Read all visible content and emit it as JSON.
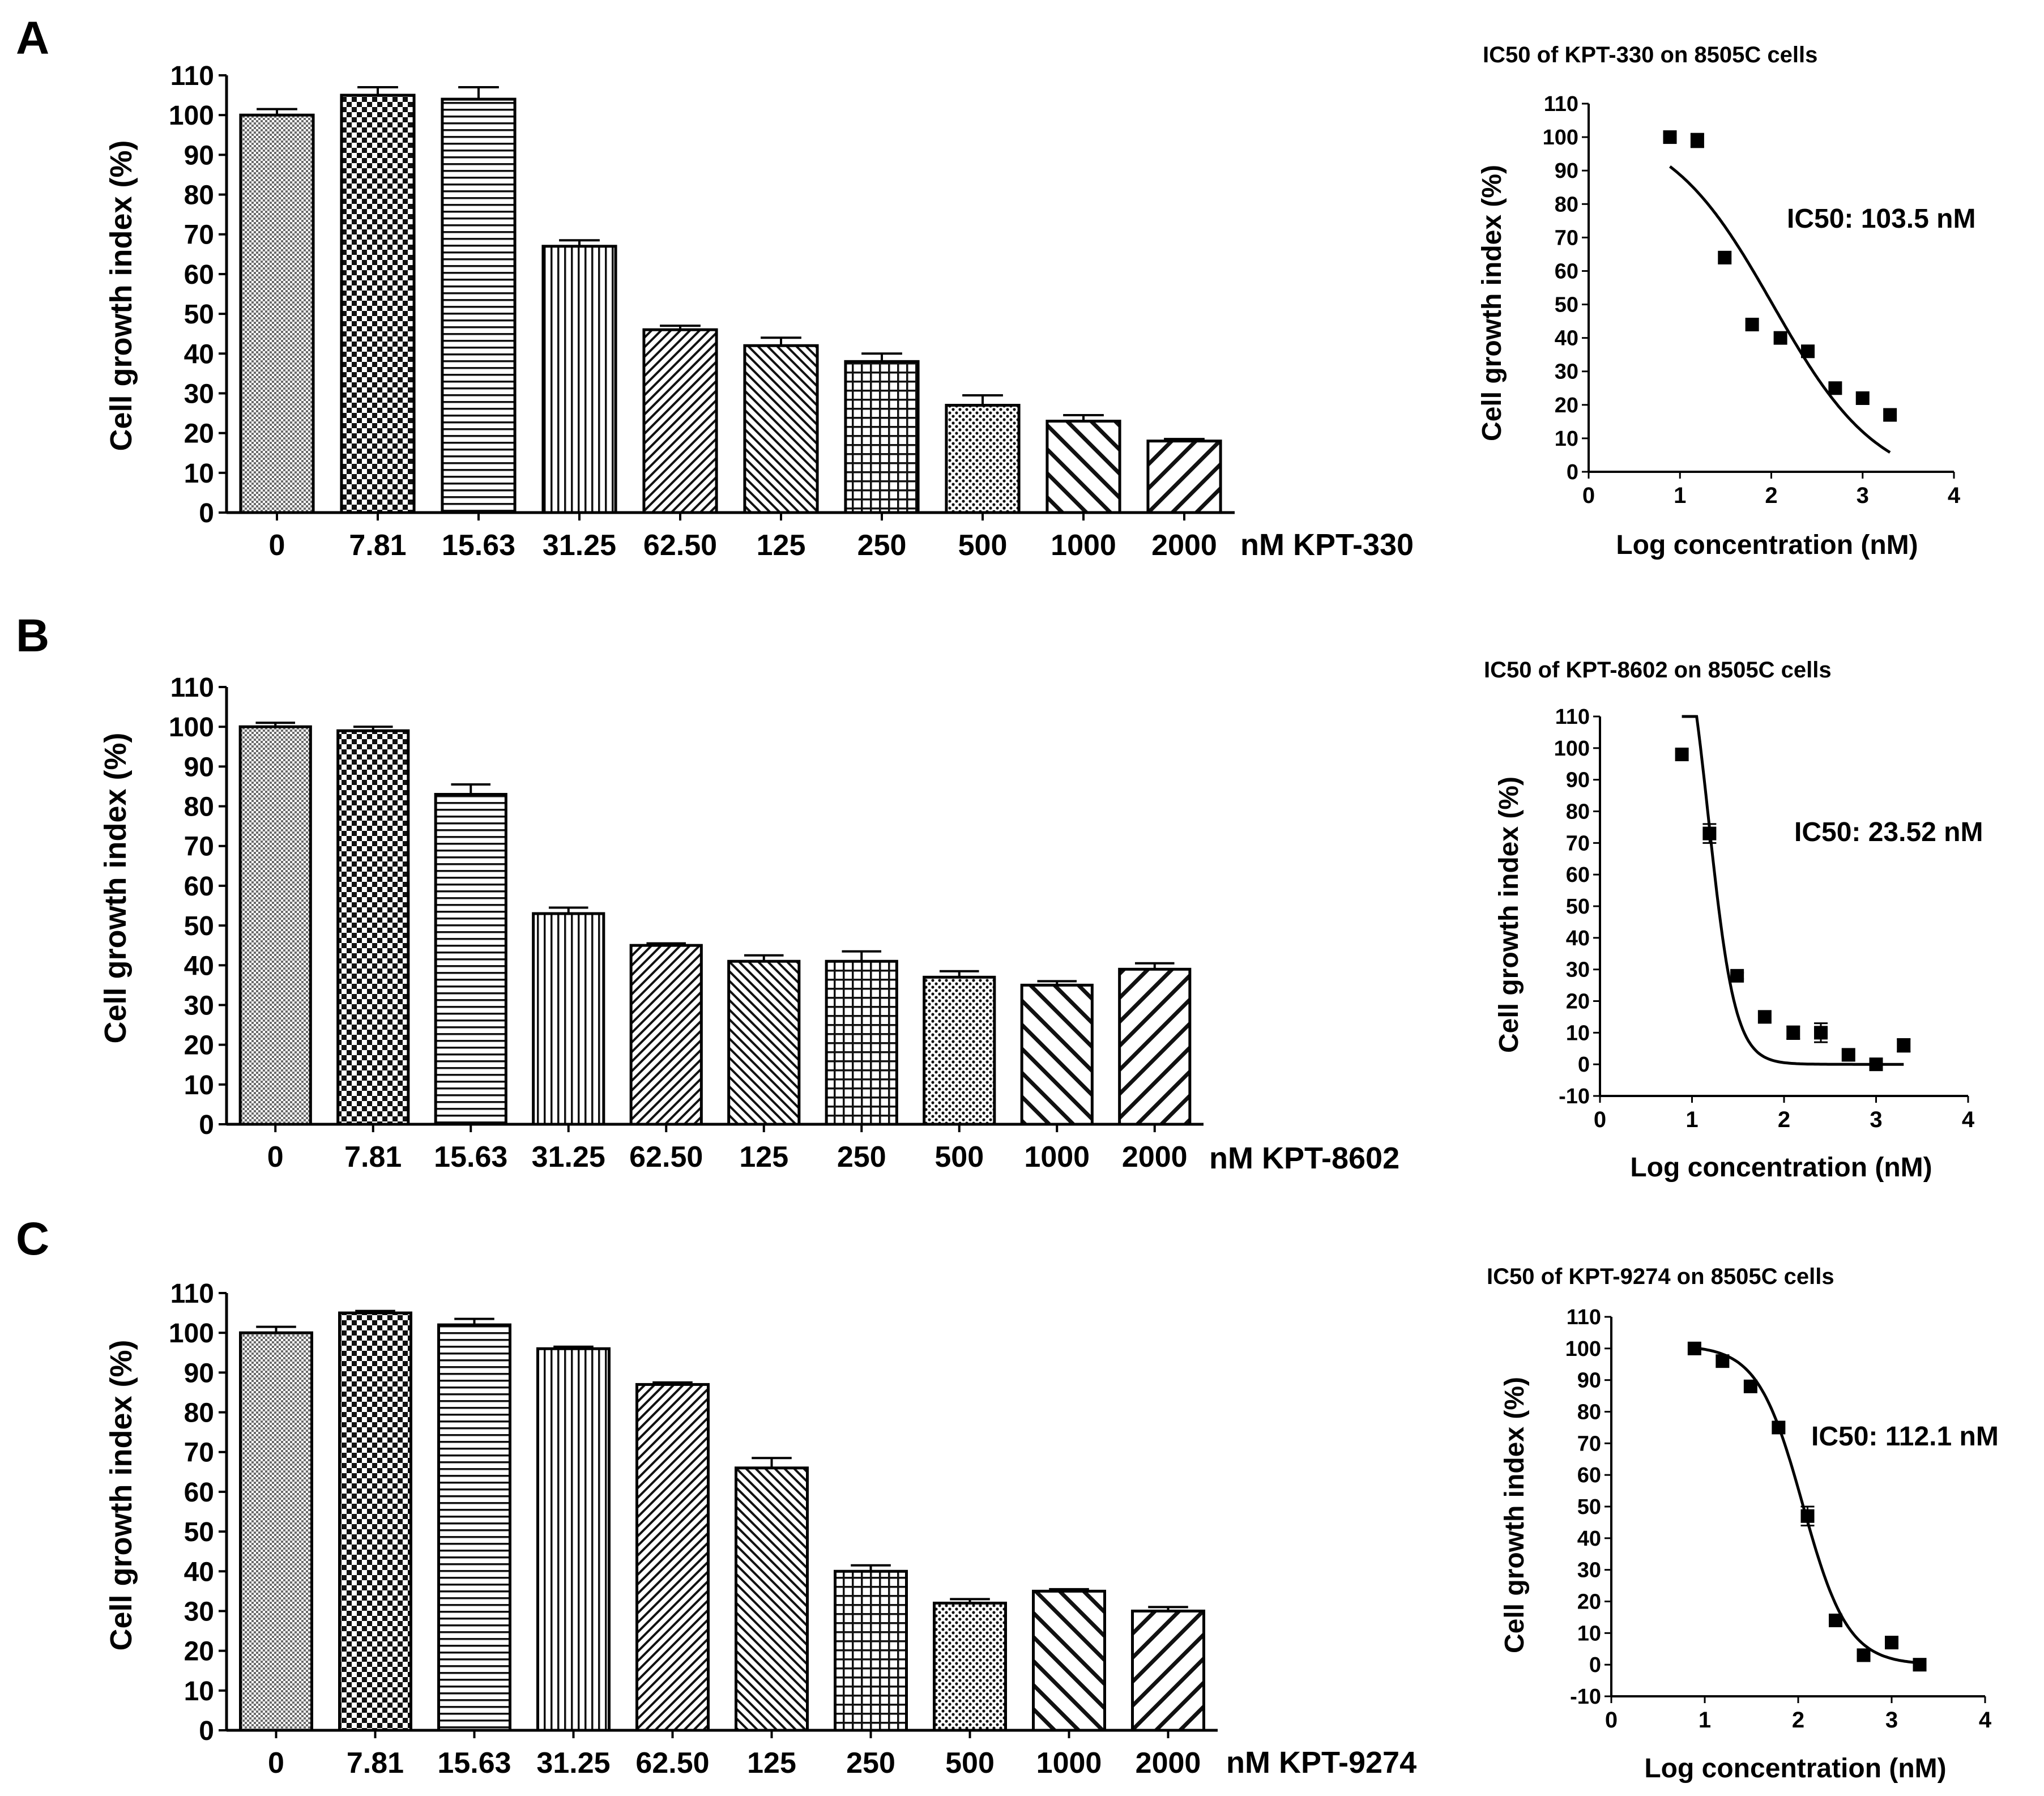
{
  "figure": {
    "panels": [
      {
        "label": "A",
        "bar": {
          "ylabel": "Cell growth index (%)",
          "xlabel": "nM KPT-330"
        },
        "ic50": {
          "title": "IC50 of KPT-330 on 8505C cells",
          "ylabel": "Cell growth index (%)",
          "xlabel": "Log concentration (nM)",
          "annotation": "IC50:  103.5 nM"
        }
      },
      {
        "label": "B",
        "bar": {
          "ylabel": "Cell growth index (%)",
          "xlabel": "nM KPT-8602"
        },
        "ic50": {
          "title": "IC50 of KPT-8602 on 8505C cells",
          "ylabel": "Cell growth index (%)",
          "xlabel": "Log concentration (nM)",
          "annotation": "IC50:  23.52 nM"
        }
      },
      {
        "label": "C",
        "bar": {
          "ylabel": "Cell growth index (%)",
          "xlabel": "nM KPT-9274"
        },
        "ic50": {
          "title": "IC50 of KPT-9274 on 8505C cells",
          "ylabel": "Cell growth index (%)",
          "xlabel": "Log concentration (nM)",
          "annotation": "IC50:  112.1 nM"
        }
      }
    ]
  },
  "chart_data": [
    {
      "type": "bar",
      "title": "",
      "xlabel": "nM KPT-330",
      "ylabel": "Cell growth index (%)",
      "categories": [
        "0",
        "7.81",
        "15.63",
        "31.25",
        "62.50",
        "125",
        "250",
        "500",
        "1000",
        "2000"
      ],
      "values": [
        100,
        105,
        104,
        67,
        46,
        42,
        38,
        27,
        23,
        18
      ],
      "errors": [
        1.5,
        2,
        3,
        1.5,
        1,
        2,
        2,
        2.5,
        1.5,
        0.5
      ],
      "ylim": [
        0,
        110
      ],
      "yticks": [
        0,
        10,
        20,
        30,
        40,
        50,
        60,
        70,
        80,
        90,
        100,
        110
      ],
      "grid": false
    },
    {
      "type": "scatter",
      "title": "IC50 of KPT-330 on 8505C cells",
      "xlabel": "Log concentration (nM)",
      "ylabel": "Cell growth index (%)",
      "x": [
        0.89,
        1.19,
        1.49,
        1.79,
        2.1,
        2.4,
        2.7,
        3.0,
        3.3
      ],
      "y": [
        100,
        99,
        64,
        44,
        40,
        36,
        25,
        22,
        17
      ],
      "errors": [
        0,
        2,
        0,
        0,
        0,
        0,
        0,
        0,
        0
      ],
      "fit": {
        "model": "four-parameter logistic",
        "top": 105,
        "bottom": -5,
        "logIC50": 2.015,
        "hill": -0.75
      },
      "annotation": "IC50:  103.5 nM",
      "xlim": [
        0,
        4
      ],
      "ylim": [
        0,
        110
      ],
      "xticks": [
        0,
        1,
        2,
        3,
        4
      ],
      "yticks": [
        0,
        10,
        20,
        30,
        40,
        50,
        60,
        70,
        80,
        90,
        100,
        110
      ],
      "grid": false
    },
    {
      "type": "bar",
      "title": "",
      "xlabel": "nM KPT-8602",
      "ylabel": "Cell growth index (%)",
      "categories": [
        "0",
        "7.81",
        "15.63",
        "31.25",
        "62.50",
        "125",
        "250",
        "500",
        "1000",
        "2000"
      ],
      "values": [
        100,
        99,
        83,
        53,
        45,
        41,
        41,
        37,
        35,
        39
      ],
      "errors": [
        1,
        1,
        2.5,
        1.5,
        0.5,
        1.5,
        2.5,
        1.5,
        1,
        1.5
      ],
      "ylim": [
        0,
        110
      ],
      "yticks": [
        0,
        10,
        20,
        30,
        40,
        50,
        60,
        70,
        80,
        90,
        100,
        110
      ],
      "grid": false
    },
    {
      "type": "scatter",
      "title": "IC50 of KPT-8602 on 8505C cells",
      "xlabel": "Log concentration (nM)",
      "ylabel": "Cell growth index (%)",
      "x": [
        0.89,
        1.19,
        1.49,
        1.79,
        2.1,
        2.4,
        2.7,
        3.0,
        3.3
      ],
      "y": [
        98,
        73,
        28,
        15,
        10,
        10,
        3,
        0,
        6
      ],
      "errors": [
        0,
        3,
        1,
        0,
        2,
        3,
        0,
        0,
        2
      ],
      "fit": {
        "model": "four-parameter logistic",
        "top": 155,
        "bottom": 0,
        "logIC50": 1.18,
        "hill": -3
      },
      "annotation": "IC50:  23.52 nM",
      "xlim": [
        0,
        4
      ],
      "ylim": [
        -10,
        110
      ],
      "xticks": [
        0,
        1,
        2,
        3,
        4
      ],
      "yticks": [
        -10,
        0,
        10,
        20,
        30,
        40,
        50,
        60,
        70,
        80,
        90,
        100,
        110
      ],
      "grid": false
    },
    {
      "type": "bar",
      "title": "",
      "xlabel": "nM KPT-9274",
      "ylabel": "Cell growth index (%)",
      "categories": [
        "0",
        "7.81",
        "15.63",
        "31.25",
        "62.50",
        "125",
        "250",
        "500",
        "1000",
        "2000"
      ],
      "values": [
        100,
        105,
        102,
        96,
        87,
        66,
        40,
        32,
        35,
        30
      ],
      "errors": [
        1.5,
        0.5,
        1.5,
        0.5,
        0.5,
        2.5,
        1.5,
        1,
        0.5,
        1
      ],
      "ylim": [
        0,
        110
      ],
      "yticks": [
        0,
        10,
        20,
        30,
        40,
        50,
        60,
        70,
        80,
        90,
        100,
        110
      ],
      "grid": false
    },
    {
      "type": "scatter",
      "title": "IC50 of KPT-9274 on 8505C cells",
      "xlabel": "Log concentration (nM)",
      "ylabel": "Cell growth index (%)",
      "x": [
        0.89,
        1.19,
        1.49,
        1.79,
        2.1,
        2.4,
        2.7,
        3.0,
        3.3
      ],
      "y": [
        100,
        96,
        88,
        75,
        47,
        14,
        3,
        7,
        0
      ],
      "errors": [
        0,
        0,
        0,
        0,
        3,
        0,
        0,
        0,
        0
      ],
      "fit": {
        "model": "four-parameter logistic",
        "top": 101,
        "bottom": 0,
        "logIC50": 2.05,
        "hill": -1.8
      },
      "annotation": "IC50:  112.1 nM",
      "xlim": [
        0,
        4
      ],
      "ylim": [
        -10,
        110
      ],
      "xticks": [
        0,
        1,
        2,
        3,
        4
      ],
      "yticks": [
        -10,
        0,
        10,
        20,
        30,
        40,
        50,
        60,
        70,
        80,
        90,
        100,
        110
      ],
      "grid": false
    }
  ]
}
